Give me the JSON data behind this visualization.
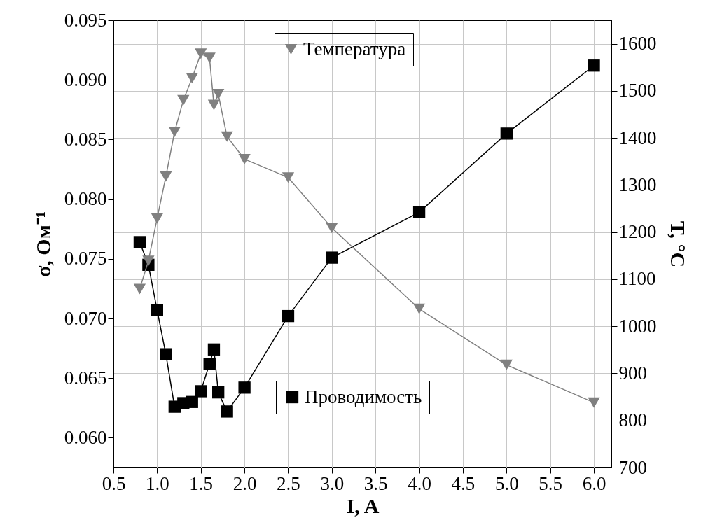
{
  "chart_data": {
    "type": "line",
    "xlabel": "I, A",
    "ylabel": "σ, Ом⁻¹",
    "y2label": "T, °C",
    "grid": true,
    "xlim": [
      0.5,
      6.2
    ],
    "xticks": [
      0.5,
      {
        "value": 1,
        "label": "1.0"
      },
      1.5,
      {
        "value": 2,
        "label": "2.0"
      },
      2.5,
      {
        "value": 3,
        "label": "3.0"
      },
      3.5,
      {
        "value": 4,
        "label": "4.0"
      },
      4.5,
      {
        "value": 5,
        "label": "5.0"
      },
      5.5,
      {
        "value": 6,
        "label": "6.0"
      }
    ],
    "ylim": [
      0.0575,
      0.095
    ],
    "yticks": [
      {
        "value": 0.06,
        "label": "0.060"
      },
      0.065,
      {
        "value": 0.07,
        "label": "0.070"
      },
      0.075,
      {
        "value": 0.08,
        "label": "0.080"
      },
      0.085,
      {
        "value": 0.09,
        "label": "0.090"
      },
      0.095
    ],
    "legend": "top",
    "y2lim": [
      700,
      1650
    ],
    "y2ticks": [
      700,
      800,
      900,
      1000,
      1100,
      1200,
      1300,
      1400,
      1500,
      1600
    ],
    "series": [
      {
        "name": "Проводимость",
        "color": "#000000",
        "marker": "square",
        "axis": "y",
        "x": [
          0.8,
          0.9,
          1.0,
          1.1,
          1.2,
          1.3,
          1.4,
          1.5,
          1.6,
          1.65,
          1.7,
          1.8,
          2.0,
          2.5,
          3.0,
          4.0,
          5.0,
          6.0
        ],
        "values": [
          0.0764,
          0.0745,
          0.0707,
          0.067,
          0.0626,
          0.0629,
          0.063,
          0.0639,
          0.0662,
          0.0674,
          0.0638,
          0.0622,
          0.0642,
          0.0702,
          0.0751,
          0.0789,
          0.0855,
          0.0912
        ]
      },
      {
        "name": "Температура",
        "color": "#808080",
        "marker": "triangle-down",
        "axis": "y2",
        "x": [
          0.8,
          0.9,
          1.0,
          1.1,
          1.2,
          1.3,
          1.4,
          1.5,
          1.6,
          1.65,
          1.7,
          1.8,
          2.0,
          2.5,
          3.0,
          4.0,
          5.0,
          6.0
        ],
        "values": [
          1079,
          1139,
          1229,
          1318,
          1413,
          1480,
          1527,
          1579,
          1570,
          1470,
          1493,
          1403,
          1355,
          1316,
          1209,
          1037,
          918,
          838
        ]
      }
    ]
  }
}
